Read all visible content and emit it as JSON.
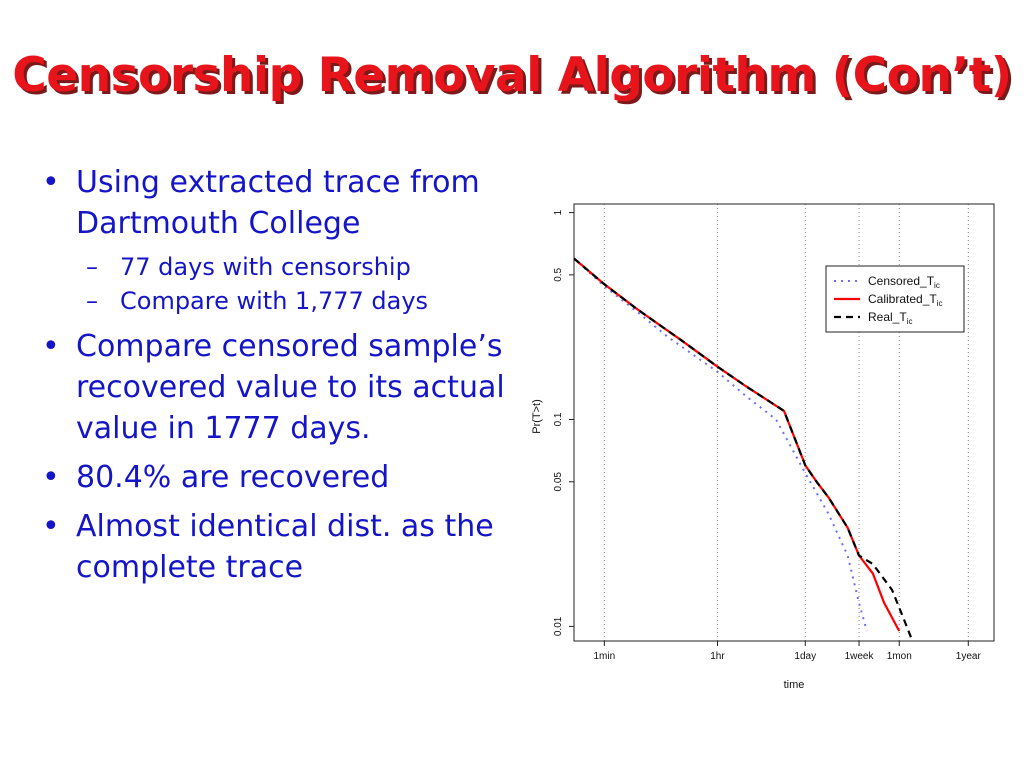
{
  "slide": {
    "title": "Censorship Removal Algorithm (Con’t)",
    "bullets": [
      {
        "text": "Using extracted trace from Dartmouth College",
        "sub": [
          "77 days with censorship",
          "Compare with 1,777 days"
        ]
      },
      {
        "text": "Compare censored sample’s recovered value to its actual value in 1777 days."
      },
      {
        "text": "80.4% are recovered"
      },
      {
        "text": "Almost identical dist. as the complete trace"
      }
    ]
  },
  "colors": {
    "title": "#e8141b",
    "bullet_text": "#1515c8",
    "censored": "#6b6bff",
    "calibrated": "#ff0000",
    "real": "#000000"
  },
  "chart_data": {
    "type": "line",
    "xlabel": "time",
    "ylabel": "Pr(T>t)",
    "x_scale": "log",
    "y_scale": "log",
    "x_unit": "seconds",
    "xlim": [
      20,
      80000000
    ],
    "ylim": [
      0.0085,
      1.1
    ],
    "x_ticks": [
      {
        "value": 60,
        "label": "1min"
      },
      {
        "value": 3600,
        "label": "1hr"
      },
      {
        "value": 86400,
        "label": "1day"
      },
      {
        "value": 604800,
        "label": "1week"
      },
      {
        "value": 2592000,
        "label": "1mon"
      },
      {
        "value": 31536000,
        "label": "1year"
      }
    ],
    "y_ticks": [
      {
        "value": 1,
        "label": "1"
      },
      {
        "value": 0.5,
        "label": "0.5"
      },
      {
        "value": 0.1,
        "label": "0.1"
      },
      {
        "value": 0.05,
        "label": "0.05"
      },
      {
        "value": 0.01,
        "label": "0.01"
      }
    ],
    "grid": "vertical dotted at x ticks",
    "legend_position": "top-right",
    "series": [
      {
        "name": "Censored_T",
        "sub": "ic",
        "style": "dotted",
        "color": "#6b6bff",
        "x": [
          20,
          60,
          200,
          600,
          3600,
          10000,
          30000,
          86400,
          200000,
          400000,
          604800,
          800000
        ],
        "y": [
          0.6,
          0.44,
          0.33,
          0.25,
          0.17,
          0.13,
          0.1,
          0.055,
          0.035,
          0.022,
          0.013,
          0.0095
        ]
      },
      {
        "name": "Calibrated_T",
        "sub": "ic",
        "style": "solid",
        "color": "#ff0000",
        "x": [
          20,
          60,
          200,
          1000,
          3600,
          10000,
          40000,
          86400,
          130000,
          200000,
          400000,
          604800,
          1000000,
          1500000,
          2592000
        ],
        "y": [
          0.6,
          0.45,
          0.34,
          0.24,
          0.18,
          0.145,
          0.11,
          0.06,
          0.05,
          0.042,
          0.03,
          0.022,
          0.018,
          0.013,
          0.0095
        ]
      },
      {
        "name": "Real_T",
        "sub": "ic",
        "style": "dashed",
        "color": "#000000",
        "x": [
          20,
          60,
          200,
          1000,
          3600,
          10000,
          40000,
          86400,
          130000,
          200000,
          400000,
          604800,
          1000000,
          2000000,
          3000000,
          4000000
        ],
        "y": [
          0.6,
          0.45,
          0.34,
          0.24,
          0.18,
          0.145,
          0.11,
          0.06,
          0.05,
          0.042,
          0.03,
          0.022,
          0.02,
          0.015,
          0.011,
          0.0088
        ]
      }
    ]
  }
}
